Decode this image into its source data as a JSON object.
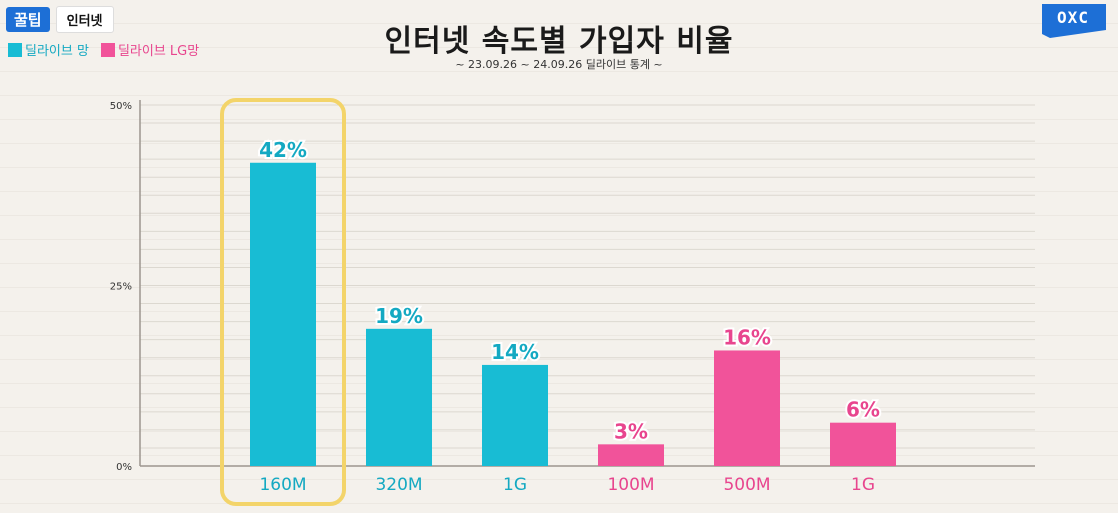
{
  "header": {
    "tag_primary": "꿀팁",
    "tag_secondary": "인터넷",
    "title": "인터넷 속도별 가입자 비율",
    "subtitle": "~ 23.09.26 ~ 24.09.26 딜라이브 통계 ~",
    "logo_text": "OXC"
  },
  "legend": [
    {
      "label": "딜라이브 망",
      "color": "#18bcd4"
    },
    {
      "label": "딜라이브 LG망",
      "color": "#f1539a"
    }
  ],
  "colors": {
    "series_1": "#18bcd4",
    "series_2": "#f1539a",
    "highlight": "#f3d46a",
    "label_series_1": "#14a9c2",
    "label_series_2": "#e8458e",
    "logo_bg": "#1d6fd6"
  },
  "chart_data": {
    "type": "bar",
    "title": "인터넷 속도별 가입자 비율",
    "categories": [
      "160M",
      "320M",
      "1G",
      "100M",
      "500M",
      "1G"
    ],
    "series": [
      {
        "name": "딜라이브 망",
        "values": [
          42,
          19,
          14,
          null,
          null,
          null
        ]
      },
      {
        "name": "딜라이브 LG망",
        "values": [
          null,
          null,
          null,
          3,
          16,
          6
        ]
      }
    ],
    "data_labels": [
      "42%",
      "19%",
      "14%",
      "3%",
      "16%",
      "6%"
    ],
    "y_ticks": [
      "0%",
      "25%",
      "50%"
    ],
    "y_tick_values": [
      0,
      25,
      50
    ],
    "ylim": [
      0,
      50
    ],
    "legend_position": "top-left",
    "highlighted_category": "160M",
    "grid": true
  }
}
